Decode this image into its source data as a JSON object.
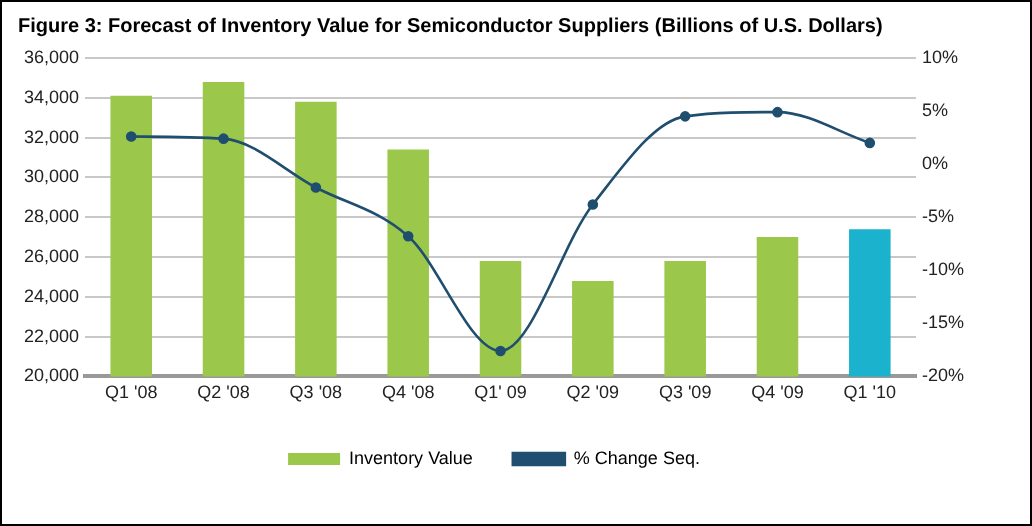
{
  "chart_data": {
    "type": "bar",
    "title": "Figure 3: Forecast of Inventory Value for Semiconductor Suppliers (Billions of U.S. Dollars)",
    "categories": [
      "Q1 '08",
      "Q2 '08",
      "Q3 '08",
      "Q4 '08",
      "Q1' 09",
      "Q2 '09",
      "Q3 '09",
      "Q4 '09",
      "Q1 '10"
    ],
    "series": [
      {
        "name": "Inventory Value",
        "color": "#9bc74a",
        "colors": [
          "#9bc74a",
          "#9bc74a",
          "#9bc74a",
          "#9bc74a",
          "#9bc74a",
          "#9bc74a",
          "#9bc74a",
          "#9bc74a",
          "#1ab2cc"
        ],
        "values": [
          34100,
          34800,
          33800,
          31400,
          25800,
          24800,
          25800,
          27000,
          27400
        ]
      },
      {
        "name": "% Change Seq.",
        "type": "line",
        "axis": "y2",
        "color": "#1f4e6e",
        "values": [
          2.6,
          2.4,
          -2.2,
          -6.8,
          -17.6,
          -3.8,
          4.5,
          4.9,
          2.0
        ]
      }
    ],
    "ylim": [
      20000,
      36000
    ],
    "yticks": [
      {
        "value": 20000,
        "label": "20,000"
      },
      {
        "value": 22000,
        "label": "22,000"
      },
      {
        "value": 24000,
        "label": "24,000"
      },
      {
        "value": 26000,
        "label": "26,000"
      },
      {
        "value": 28000,
        "label": "28,000"
      },
      {
        "value": 30000,
        "label": "30,000"
      },
      {
        "value": 32000,
        "label": "32,000"
      },
      {
        "value": 34000,
        "label": "34,000"
      },
      {
        "value": 36000,
        "label": "36,000"
      }
    ],
    "y2lim": [
      -20,
      10
    ],
    "y2ticks": [
      {
        "value": -20,
        "label": "-20%"
      },
      {
        "value": -15,
        "label": "-15%"
      },
      {
        "value": -10,
        "label": "-10%"
      },
      {
        "value": -5,
        "label": "-5%"
      },
      {
        "value": 0,
        "label": "0%"
      },
      {
        "value": 5,
        "label": "5%"
      },
      {
        "value": 10,
        "label": "10%"
      }
    ],
    "grid": "y",
    "legend": "bottom",
    "marker": "circle",
    "line_style": "solid"
  }
}
